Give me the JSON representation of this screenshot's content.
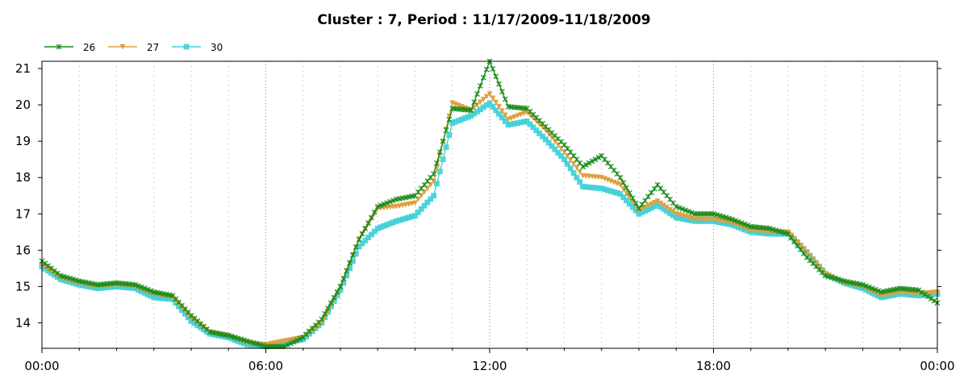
{
  "chart_data": {
    "type": "line",
    "title": "Cluster : 7, Period : 11/17/2009-11/18/2009",
    "xlabel": "",
    "ylabel": "",
    "x_unit": "hours",
    "xlim": [
      0,
      24
    ],
    "ylim": [
      13.3,
      21.2
    ],
    "x_ticks": [
      0,
      6,
      12,
      18,
      24
    ],
    "x_tick_labels": [
      "00:00",
      "06:00",
      "12:00",
      "18:00",
      "00:00"
    ],
    "y_ticks": [
      14,
      15,
      16,
      17,
      18,
      19,
      20,
      21
    ],
    "y_tick_labels": [
      "14",
      "15",
      "16",
      "17",
      "18",
      "19",
      "20",
      "21"
    ],
    "grid": true,
    "legend_position": "top-left",
    "x": [
      0,
      0.5,
      1,
      1.5,
      2,
      2.5,
      3,
      3.5,
      4,
      4.5,
      5,
      5.5,
      6,
      6.5,
      7,
      7.5,
      8,
      8.5,
      9,
      9.5,
      10,
      10.5,
      11,
      11.5,
      12,
      12.5,
      13,
      13.5,
      14,
      14.5,
      15,
      15.5,
      16,
      16.5,
      17,
      17.5,
      18,
      18.5,
      19,
      19.5,
      20,
      20.5,
      21,
      21.5,
      22,
      22.5,
      23,
      23.5,
      24
    ],
    "series": [
      {
        "name": "26",
        "color": "#1a8c1a",
        "marker": "x",
        "values": [
          15.7,
          15.3,
          15.15,
          15.05,
          15.1,
          15.05,
          14.85,
          14.75,
          14.2,
          13.75,
          13.65,
          13.5,
          13.35,
          13.35,
          13.6,
          14.1,
          15.0,
          16.3,
          17.2,
          17.4,
          17.5,
          18.1,
          19.9,
          19.85,
          21.2,
          19.95,
          19.9,
          19.4,
          18.9,
          18.3,
          18.6,
          18.0,
          17.15,
          17.8,
          17.2,
          17.0,
          17.0,
          16.85,
          16.65,
          16.6,
          16.45,
          15.8,
          15.3,
          15.15,
          15.05,
          14.85,
          14.95,
          14.9,
          14.55
        ]
      },
      {
        "name": "27",
        "color": "#e0a040",
        "marker": "triangle-down",
        "values": [
          15.6,
          15.25,
          15.1,
          15.0,
          15.05,
          15.0,
          14.8,
          14.7,
          14.15,
          13.75,
          13.65,
          13.45,
          13.4,
          13.5,
          13.6,
          14.0,
          15.0,
          16.3,
          17.15,
          17.2,
          17.3,
          17.9,
          20.05,
          19.85,
          20.3,
          19.6,
          19.8,
          19.3,
          18.7,
          18.05,
          18.0,
          17.8,
          17.1,
          17.35,
          17.0,
          16.85,
          16.85,
          16.75,
          16.55,
          16.5,
          16.5,
          15.95,
          15.35,
          15.1,
          15.0,
          14.75,
          14.85,
          14.8,
          14.85
        ]
      },
      {
        "name": "30",
        "color": "#40d0d8",
        "marker": "square",
        "values": [
          15.55,
          15.2,
          15.05,
          14.95,
          15.0,
          14.95,
          14.7,
          14.65,
          14.05,
          13.7,
          13.6,
          13.4,
          13.35,
          13.45,
          13.55,
          14.0,
          14.9,
          16.1,
          16.6,
          16.8,
          16.95,
          17.5,
          19.5,
          19.7,
          20.05,
          19.45,
          19.55,
          19.05,
          18.5,
          17.75,
          17.7,
          17.55,
          17.0,
          17.25,
          16.9,
          16.8,
          16.8,
          16.7,
          16.5,
          16.45,
          16.45,
          15.95,
          15.35,
          15.1,
          14.95,
          14.7,
          14.8,
          14.75,
          14.8
        ]
      }
    ]
  }
}
